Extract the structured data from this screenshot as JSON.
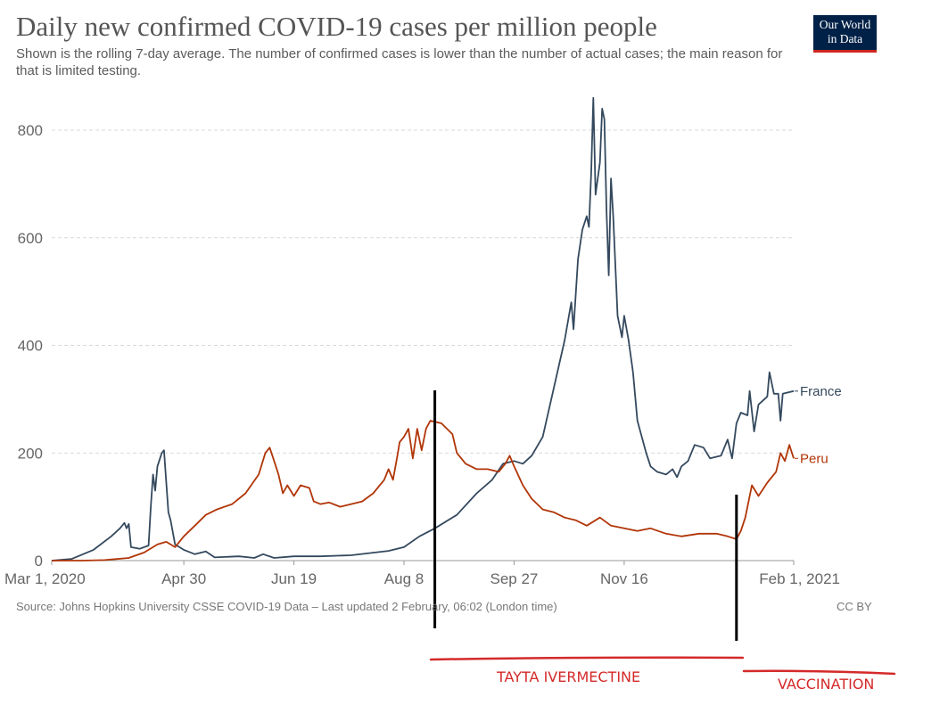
{
  "header": {
    "title": "Daily new confirmed COVID-19 cases per million people",
    "subtitle": "Shown is the rolling 7-day average. The number of confirmed cases is lower than the number of actual cases; the main reason for that is limited testing.",
    "logo_line1": "Our World",
    "logo_line2": "in Data"
  },
  "footer": {
    "source": "Source: Johns Hopkins University CSSE COVID-19 Data – Last updated 2 February, 06:02 (London time)",
    "license": "CC BY"
  },
  "annotations": {
    "label_1": "TAYTA IVERMECTINE",
    "label_2": "VACCINATION",
    "marker_1_date": "2020-08-22",
    "marker_2_date": "2021-01-06",
    "color": "#d42a2a"
  },
  "colors": {
    "France": "#34495e",
    "Peru": "#b13507",
    "grid": "#d9d9d9",
    "tick_text": "#666666"
  },
  "chart_data": {
    "type": "line",
    "title": "Daily new confirmed COVID-19 cases per million people",
    "xlabel": "",
    "ylabel": "",
    "x_range": [
      "2020-03-01",
      "2021-02-01"
    ],
    "ylim": [
      0,
      860
    ],
    "x_ticks": [
      {
        "label": "Mar 1, 2020",
        "date": "2020-03-01"
      },
      {
        "label": "Apr 30",
        "date": "2020-04-30"
      },
      {
        "label": "Jun 19",
        "date": "2020-06-19"
      },
      {
        "label": "Aug 8",
        "date": "2020-08-08"
      },
      {
        "label": "Sep 27",
        "date": "2020-09-27"
      },
      {
        "label": "Nov 16",
        "date": "2020-11-16"
      },
      {
        "label": "Feb 1, 2021",
        "date": "2021-02-01"
      }
    ],
    "y_ticks": [
      0,
      200,
      400,
      600,
      800
    ],
    "grid": true,
    "legend": "inline labels at line ends",
    "series": [
      {
        "name": "France",
        "points": [
          [
            "2020-03-01",
            0
          ],
          [
            "2020-03-10",
            3
          ],
          [
            "2020-03-20",
            20
          ],
          [
            "2020-03-28",
            45
          ],
          [
            "2020-04-01",
            60
          ],
          [
            "2020-04-03",
            70
          ],
          [
            "2020-04-04",
            60
          ],
          [
            "2020-04-05",
            68
          ],
          [
            "2020-04-06",
            25
          ],
          [
            "2020-04-10",
            22
          ],
          [
            "2020-04-14",
            28
          ],
          [
            "2020-04-15",
            100
          ],
          [
            "2020-04-16",
            160
          ],
          [
            "2020-04-17",
            130
          ],
          [
            "2020-04-18",
            175
          ],
          [
            "2020-04-20",
            200
          ],
          [
            "2020-04-21",
            205
          ],
          [
            "2020-04-23",
            90
          ],
          [
            "2020-04-24",
            75
          ],
          [
            "2020-04-26",
            30
          ],
          [
            "2020-04-30",
            20
          ],
          [
            "2020-05-05",
            12
          ],
          [
            "2020-05-10",
            17
          ],
          [
            "2020-05-14",
            6
          ],
          [
            "2020-05-25",
            8
          ],
          [
            "2020-06-01",
            5
          ],
          [
            "2020-06-05",
            12
          ],
          [
            "2020-06-10",
            5
          ],
          [
            "2020-06-19",
            8
          ],
          [
            "2020-07-01",
            8
          ],
          [
            "2020-07-15",
            10
          ],
          [
            "2020-08-01",
            18
          ],
          [
            "2020-08-08",
            25
          ],
          [
            "2020-08-15",
            45
          ],
          [
            "2020-08-22",
            60
          ],
          [
            "2020-09-01",
            85
          ],
          [
            "2020-09-10",
            125
          ],
          [
            "2020-09-17",
            150
          ],
          [
            "2020-09-22",
            180
          ],
          [
            "2020-09-27",
            185
          ],
          [
            "2020-10-01",
            180
          ],
          [
            "2020-10-05",
            195
          ],
          [
            "2020-10-10",
            230
          ],
          [
            "2020-10-15",
            320
          ],
          [
            "2020-10-20",
            410
          ],
          [
            "2020-10-23",
            480
          ],
          [
            "2020-10-24",
            430
          ],
          [
            "2020-10-26",
            560
          ],
          [
            "2020-10-28",
            615
          ],
          [
            "2020-10-30",
            640
          ],
          [
            "2020-10-31",
            620
          ],
          [
            "2020-11-01",
            720
          ],
          [
            "2020-11-02",
            860
          ],
          [
            "2020-11-03",
            680
          ],
          [
            "2020-11-05",
            740
          ],
          [
            "2020-11-06",
            840
          ],
          [
            "2020-11-07",
            820
          ],
          [
            "2020-11-08",
            650
          ],
          [
            "2020-11-09",
            530
          ],
          [
            "2020-11-10",
            710
          ],
          [
            "2020-11-11",
            640
          ],
          [
            "2020-11-13",
            455
          ],
          [
            "2020-11-15",
            415
          ],
          [
            "2020-11-16",
            455
          ],
          [
            "2020-11-18",
            410
          ],
          [
            "2020-11-20",
            350
          ],
          [
            "2020-11-22",
            260
          ],
          [
            "2020-11-26",
            200
          ],
          [
            "2020-11-28",
            175
          ],
          [
            "2020-12-01",
            165
          ],
          [
            "2020-12-05",
            160
          ],
          [
            "2020-12-08",
            170
          ],
          [
            "2020-12-10",
            155
          ],
          [
            "2020-12-12",
            175
          ],
          [
            "2020-12-15",
            185
          ],
          [
            "2020-12-18",
            215
          ],
          [
            "2020-12-22",
            210
          ],
          [
            "2020-12-25",
            190
          ],
          [
            "2020-12-30",
            195
          ],
          [
            "2021-01-02",
            225
          ],
          [
            "2021-01-04",
            190
          ],
          [
            "2021-01-06",
            255
          ],
          [
            "2021-01-08",
            275
          ],
          [
            "2021-01-11",
            270
          ],
          [
            "2021-01-12",
            315
          ],
          [
            "2021-01-14",
            240
          ],
          [
            "2021-01-16",
            290
          ],
          [
            "2021-01-20",
            305
          ],
          [
            "2021-01-21",
            350
          ],
          [
            "2021-01-23",
            310
          ],
          [
            "2021-01-25",
            310
          ],
          [
            "2021-01-26",
            260
          ],
          [
            "2021-01-27",
            310
          ],
          [
            "2021-02-01",
            315
          ]
        ]
      },
      {
        "name": "Peru",
        "points": [
          [
            "2020-03-01",
            0
          ],
          [
            "2020-03-15",
            0
          ],
          [
            "2020-03-25",
            1
          ],
          [
            "2020-04-05",
            5
          ],
          [
            "2020-04-12",
            15
          ],
          [
            "2020-04-18",
            30
          ],
          [
            "2020-04-22",
            35
          ],
          [
            "2020-04-26",
            25
          ],
          [
            "2020-04-30",
            45
          ],
          [
            "2020-05-05",
            65
          ],
          [
            "2020-05-10",
            85
          ],
          [
            "2020-05-15",
            95
          ],
          [
            "2020-05-22",
            105
          ],
          [
            "2020-05-28",
            125
          ],
          [
            "2020-06-03",
            160
          ],
          [
            "2020-06-06",
            200
          ],
          [
            "2020-06-08",
            210
          ],
          [
            "2020-06-10",
            185
          ],
          [
            "2020-06-12",
            160
          ],
          [
            "2020-06-14",
            125
          ],
          [
            "2020-06-16",
            140
          ],
          [
            "2020-06-19",
            120
          ],
          [
            "2020-06-22",
            140
          ],
          [
            "2020-06-26",
            135
          ],
          [
            "2020-06-28",
            110
          ],
          [
            "2020-07-01",
            105
          ],
          [
            "2020-07-05",
            108
          ],
          [
            "2020-07-10",
            100
          ],
          [
            "2020-07-15",
            105
          ],
          [
            "2020-07-20",
            110
          ],
          [
            "2020-07-25",
            125
          ],
          [
            "2020-07-30",
            150
          ],
          [
            "2020-08-01",
            170
          ],
          [
            "2020-08-03",
            150
          ],
          [
            "2020-08-05",
            195
          ],
          [
            "2020-08-06",
            220
          ],
          [
            "2020-08-08",
            230
          ],
          [
            "2020-08-10",
            245
          ],
          [
            "2020-08-12",
            190
          ],
          [
            "2020-08-14",
            245
          ],
          [
            "2020-08-16",
            205
          ],
          [
            "2020-08-18",
            245
          ],
          [
            "2020-08-20",
            260
          ],
          [
            "2020-08-25",
            255
          ],
          [
            "2020-08-30",
            235
          ],
          [
            "2020-09-01",
            200
          ],
          [
            "2020-09-05",
            180
          ],
          [
            "2020-09-10",
            170
          ],
          [
            "2020-09-15",
            170
          ],
          [
            "2020-09-20",
            165
          ],
          [
            "2020-09-23",
            180
          ],
          [
            "2020-09-25",
            195
          ],
          [
            "2020-09-27",
            175
          ],
          [
            "2020-10-01",
            140
          ],
          [
            "2020-10-05",
            115
          ],
          [
            "2020-10-10",
            95
          ],
          [
            "2020-10-15",
            90
          ],
          [
            "2020-10-20",
            80
          ],
          [
            "2020-10-25",
            75
          ],
          [
            "2020-10-30",
            65
          ],
          [
            "2020-11-05",
            80
          ],
          [
            "2020-11-10",
            65
          ],
          [
            "2020-11-16",
            60
          ],
          [
            "2020-11-22",
            55
          ],
          [
            "2020-11-28",
            60
          ],
          [
            "2020-12-05",
            50
          ],
          [
            "2020-12-12",
            45
          ],
          [
            "2020-12-20",
            50
          ],
          [
            "2020-12-28",
            50
          ],
          [
            "2021-01-02",
            45
          ],
          [
            "2021-01-06",
            40
          ],
          [
            "2021-01-08",
            55
          ],
          [
            "2021-01-10",
            80
          ],
          [
            "2021-01-13",
            140
          ],
          [
            "2021-01-16",
            120
          ],
          [
            "2021-01-20",
            145
          ],
          [
            "2021-01-24",
            165
          ],
          [
            "2021-01-26",
            200
          ],
          [
            "2021-01-28",
            185
          ],
          [
            "2021-01-30",
            215
          ],
          [
            "2021-02-01",
            190
          ]
        ]
      }
    ]
  }
}
